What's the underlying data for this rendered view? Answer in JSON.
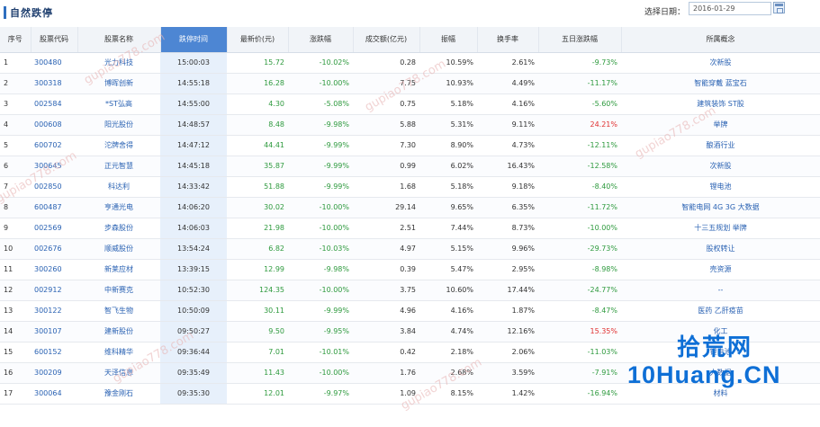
{
  "header": {
    "title": "自然跌停",
    "date_label": "选择日期：",
    "date_value": "2016-01-29"
  },
  "columns": [
    "序号",
    "股票代码",
    "股票名称",
    "跌停时间",
    "最新价(元)",
    "涨跌幅",
    "成交额(亿元)",
    "振幅",
    "换手率",
    "五日涨跌幅",
    "所属概念"
  ],
  "active_column": "跌停时间",
  "rows": [
    {
      "idx": "1",
      "code": "300480",
      "name": "光力科技",
      "time": "15:00:03",
      "price": "15.72",
      "chg": "-10.02%",
      "amount": "0.28",
      "amp": "10.59%",
      "turnover": "2.61%",
      "five": "-9.73%",
      "concept": "次新股"
    },
    {
      "idx": "2",
      "code": "300318",
      "name": "博晖创新",
      "time": "14:55:18",
      "price": "16.28",
      "chg": "-10.00%",
      "amount": "7.75",
      "amp": "10.93%",
      "turnover": "4.49%",
      "five": "-11.17%",
      "concept": "智能穿戴 蓝宝石"
    },
    {
      "idx": "3",
      "code": "002584",
      "name": "*ST弘高",
      "time": "14:55:00",
      "price": "4.30",
      "chg": "-5.08%",
      "amount": "0.75",
      "amp": "5.18%",
      "turnover": "4.16%",
      "five": "-5.60%",
      "concept": "建筑装饰 ST股"
    },
    {
      "idx": "4",
      "code": "000608",
      "name": "阳光股份",
      "time": "14:48:57",
      "price": "8.48",
      "chg": "-9.98%",
      "amount": "5.88",
      "amp": "5.31%",
      "turnover": "9.11%",
      "five": "24.21%",
      "concept": "举牌"
    },
    {
      "idx": "5",
      "code": "600702",
      "name": "沱牌舍得",
      "time": "14:47:12",
      "price": "44.41",
      "chg": "-9.99%",
      "amount": "7.30",
      "amp": "8.90%",
      "turnover": "4.73%",
      "five": "-12.11%",
      "concept": "酿酒行业"
    },
    {
      "idx": "6",
      "code": "300645",
      "name": "正元智慧",
      "time": "14:45:18",
      "price": "35.87",
      "chg": "-9.99%",
      "amount": "0.99",
      "amp": "6.02%",
      "turnover": "16.43%",
      "five": "-12.58%",
      "concept": "次新股"
    },
    {
      "idx": "7",
      "code": "002850",
      "name": "科达利",
      "time": "14:33:42",
      "price": "51.88",
      "chg": "-9.99%",
      "amount": "1.68",
      "amp": "5.18%",
      "turnover": "9.18%",
      "five": "-8.40%",
      "concept": "锂电池"
    },
    {
      "idx": "8",
      "code": "600487",
      "name": "亨通光电",
      "time": "14:06:20",
      "price": "30.02",
      "chg": "-10.00%",
      "amount": "29.14",
      "amp": "9.65%",
      "turnover": "6.35%",
      "five": "-11.72%",
      "concept": "智能电网 4G 3G 大数据"
    },
    {
      "idx": "9",
      "code": "002569",
      "name": "步森股份",
      "time": "14:06:03",
      "price": "21.98",
      "chg": "-10.00%",
      "amount": "2.51",
      "amp": "7.44%",
      "turnover": "8.73%",
      "five": "-10.00%",
      "concept": "十三五规划 举牌"
    },
    {
      "idx": "10",
      "code": "002676",
      "name": "顺威股份",
      "time": "13:54:24",
      "price": "6.82",
      "chg": "-10.03%",
      "amount": "4.97",
      "amp": "5.15%",
      "turnover": "9.96%",
      "five": "-29.73%",
      "concept": "股权转让"
    },
    {
      "idx": "11",
      "code": "300260",
      "name": "新莱应材",
      "time": "13:39:15",
      "price": "12.99",
      "chg": "-9.98%",
      "amount": "0.39",
      "amp": "5.47%",
      "turnover": "2.95%",
      "five": "-8.98%",
      "concept": "壳资源"
    },
    {
      "idx": "12",
      "code": "002912",
      "name": "中新赛克",
      "time": "10:52:30",
      "price": "124.35",
      "chg": "-10.00%",
      "amount": "3.75",
      "amp": "10.60%",
      "turnover": "17.44%",
      "five": "-24.77%",
      "concept": "--"
    },
    {
      "idx": "13",
      "code": "300122",
      "name": "智飞生物",
      "time": "10:50:09",
      "price": "30.11",
      "chg": "-9.99%",
      "amount": "4.96",
      "amp": "4.16%",
      "turnover": "1.87%",
      "five": "-8.47%",
      "concept": "医药 乙肝疫苗"
    },
    {
      "idx": "14",
      "code": "300107",
      "name": "建新股份",
      "time": "09:50:27",
      "price": "9.50",
      "chg": "-9.95%",
      "amount": "3.84",
      "amp": "4.74%",
      "turnover": "12.16%",
      "five": "15.35%",
      "concept": "化工"
    },
    {
      "idx": "15",
      "code": "600152",
      "name": "维科精华",
      "time": "09:36:44",
      "price": "7.01",
      "chg": "-10.01%",
      "amount": "0.42",
      "amp": "2.18%",
      "turnover": "2.06%",
      "five": "-11.03%",
      "concept": "锂电池"
    },
    {
      "idx": "16",
      "code": "300209",
      "name": "天泽信息",
      "time": "09:35:49",
      "price": "11.43",
      "chg": "-10.00%",
      "amount": "1.76",
      "amp": "2.68%",
      "turnover": "3.59%",
      "five": "-7.91%",
      "concept": "大数据"
    },
    {
      "idx": "17",
      "code": "300064",
      "name": "豫金刚石",
      "time": "09:35:30",
      "price": "12.01",
      "chg": "-9.97%",
      "amount": "1.09",
      "amp": "8.15%",
      "turnover": "1.42%",
      "five": "-16.94%",
      "concept": "材料"
    }
  ],
  "watermark": "gupiao778.com",
  "logo": {
    "cn": "拾荒网",
    "en": "10Huang.CN"
  },
  "colors": {
    "accent": "#4d86d3",
    "down": "#2e9a3e",
    "up": "#e03030",
    "link": "#2a62b3"
  }
}
